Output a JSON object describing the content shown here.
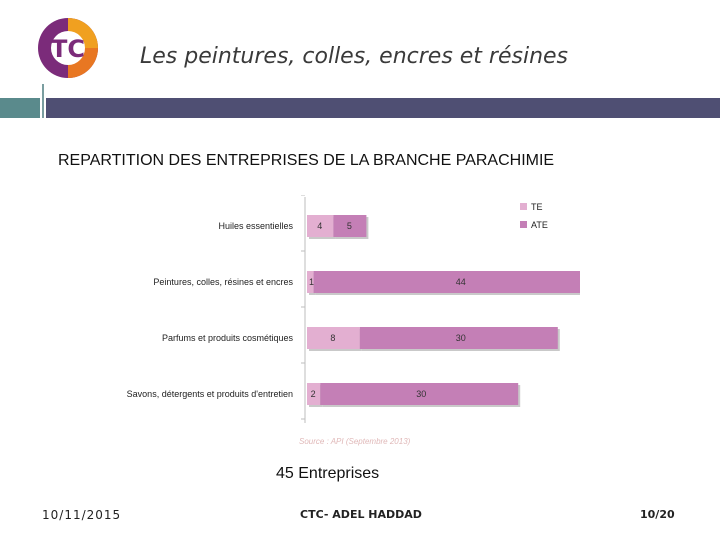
{
  "header": {
    "title": "Les peintures, colles, encres et résines",
    "logo_text": "TC"
  },
  "colors": {
    "te": "#e3afd1",
    "ate": "#c47fb6",
    "band_left": "#5a8a8c",
    "band_right": "#4f4f73",
    "source": "#e0b8b8"
  },
  "main": {
    "subtitle": "REPARTITION DES ENTREPRISES DE LA BRANCHE PARACHIMIE",
    "count": "45 Entreprises"
  },
  "chart_data": {
    "type": "bar",
    "orientation": "horizontal",
    "stacked": true,
    "categories": [
      "Huiles essentielles",
      "Peintures, colles, résines et encres",
      "Parfums et produits cosmétiques",
      "Savons, détergents et produits d'entretien"
    ],
    "series": [
      {
        "name": "TE",
        "values": [
          4,
          1,
          8,
          2
        ]
      },
      {
        "name": "ATE",
        "values": [
          5,
          44,
          30,
          30
        ]
      }
    ],
    "xlim": [
      0,
      50
    ],
    "legend": "top-right",
    "grid": false,
    "source": "Source : API (Septembre 2013)"
  },
  "footer": {
    "date": "10/11/2015",
    "center": "CTC- ADEL HADDAD",
    "page": "10/20"
  }
}
